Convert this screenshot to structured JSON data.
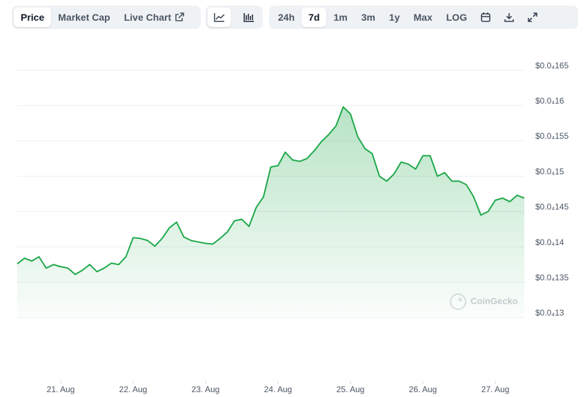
{
  "toolbar": {
    "tabs": [
      "Price",
      "Market Cap",
      "Live Chart"
    ],
    "ranges": [
      "24h",
      "7d",
      "1m",
      "3m",
      "1y",
      "Max"
    ],
    "log_label": "LOG"
  },
  "chart_data": {
    "type": "area",
    "watermark": "CoinGecko",
    "color": "#1ea84a",
    "grid": true,
    "x": [
      20.4,
      20.5,
      20.6,
      20.7,
      20.8,
      20.9,
      21.0,
      21.1,
      21.2,
      21.3,
      21.4,
      21.5,
      21.6,
      21.7,
      21.8,
      21.9,
      22.0,
      22.1,
      22.2,
      22.3,
      22.4,
      22.5,
      22.6,
      22.7,
      22.8,
      22.9,
      23.0,
      23.1,
      23.2,
      23.3,
      23.4,
      23.5,
      23.6,
      23.7,
      23.8,
      23.9,
      24.0,
      24.1,
      24.2,
      24.3,
      24.4,
      24.5,
      24.6,
      24.7,
      24.8,
      24.9,
      25.0,
      25.1,
      25.2,
      25.3,
      25.4,
      25.5,
      25.6,
      25.7,
      25.8,
      25.9,
      26.0,
      26.1,
      26.2,
      26.3,
      26.4,
      26.5,
      26.6,
      26.7,
      26.8,
      26.9,
      27.0,
      27.1,
      27.2,
      27.3,
      27.4
    ],
    "values": [
      1.376e-05,
      1.384e-05,
      1.38e-05,
      1.386e-05,
      1.37e-05,
      1.375e-05,
      1.372e-05,
      1.37e-05,
      1.361e-05,
      1.367e-05,
      1.375e-05,
      1.365e-05,
      1.37e-05,
      1.377e-05,
      1.375e-05,
      1.386e-05,
      1.413e-05,
      1.412e-05,
      1.409e-05,
      1.401e-05,
      1.412e-05,
      1.427e-05,
      1.435e-05,
      1.414e-05,
      1.409e-05,
      1.407e-05,
      1.405e-05,
      1.404e-05,
      1.412e-05,
      1.421e-05,
      1.437e-05,
      1.439e-05,
      1.429e-05,
      1.456e-05,
      1.471e-05,
      1.513e-05,
      1.515e-05,
      1.534e-05,
      1.523e-05,
      1.521e-05,
      1.525e-05,
      1.536e-05,
      1.549e-05,
      1.559e-05,
      1.571e-05,
      1.598e-05,
      1.588e-05,
      1.556e-05,
      1.539e-05,
      1.532e-05,
      1.5e-05,
      1.493e-05,
      1.503e-05,
      1.52e-05,
      1.517e-05,
      1.51e-05,
      1.529e-05,
      1.529e-05,
      1.5e-05,
      1.505e-05,
      1.493e-05,
      1.493e-05,
      1.488e-05,
      1.471e-05,
      1.445e-05,
      1.45e-05,
      1.466e-05,
      1.469e-05,
      1.464e-05,
      1.473e-05,
      1.469e-05
    ],
    "xlim": [
      20.4,
      27.4
    ],
    "xticks": [
      {
        "value": 21,
        "label": "21. Aug"
      },
      {
        "value": 22,
        "label": "22. Aug"
      },
      {
        "value": 23,
        "label": "23. Aug"
      },
      {
        "value": 24,
        "label": "24. Aug"
      },
      {
        "value": 25,
        "label": "25. Aug"
      },
      {
        "value": 26,
        "label": "26. Aug"
      },
      {
        "value": 27,
        "label": "27. Aug"
      }
    ],
    "ylim": [
      1.3e-05,
      1.7e-05
    ],
    "yticks": [
      {
        "value": 1.3e-05,
        "label": "$0.0₄13"
      },
      {
        "value": 1.35e-05,
        "label": "$0.0₄135"
      },
      {
        "value": 1.4e-05,
        "label": "$0.0₄14"
      },
      {
        "value": 1.45e-05,
        "label": "$0.0₄145"
      },
      {
        "value": 1.5e-05,
        "label": "$0.0₄15"
      },
      {
        "value": 1.55e-05,
        "label": "$0.0₄155"
      },
      {
        "value": 1.6e-05,
        "label": "$0.0₄16"
      },
      {
        "value": 1.65e-05,
        "label": "$0.0₄165"
      }
    ]
  }
}
